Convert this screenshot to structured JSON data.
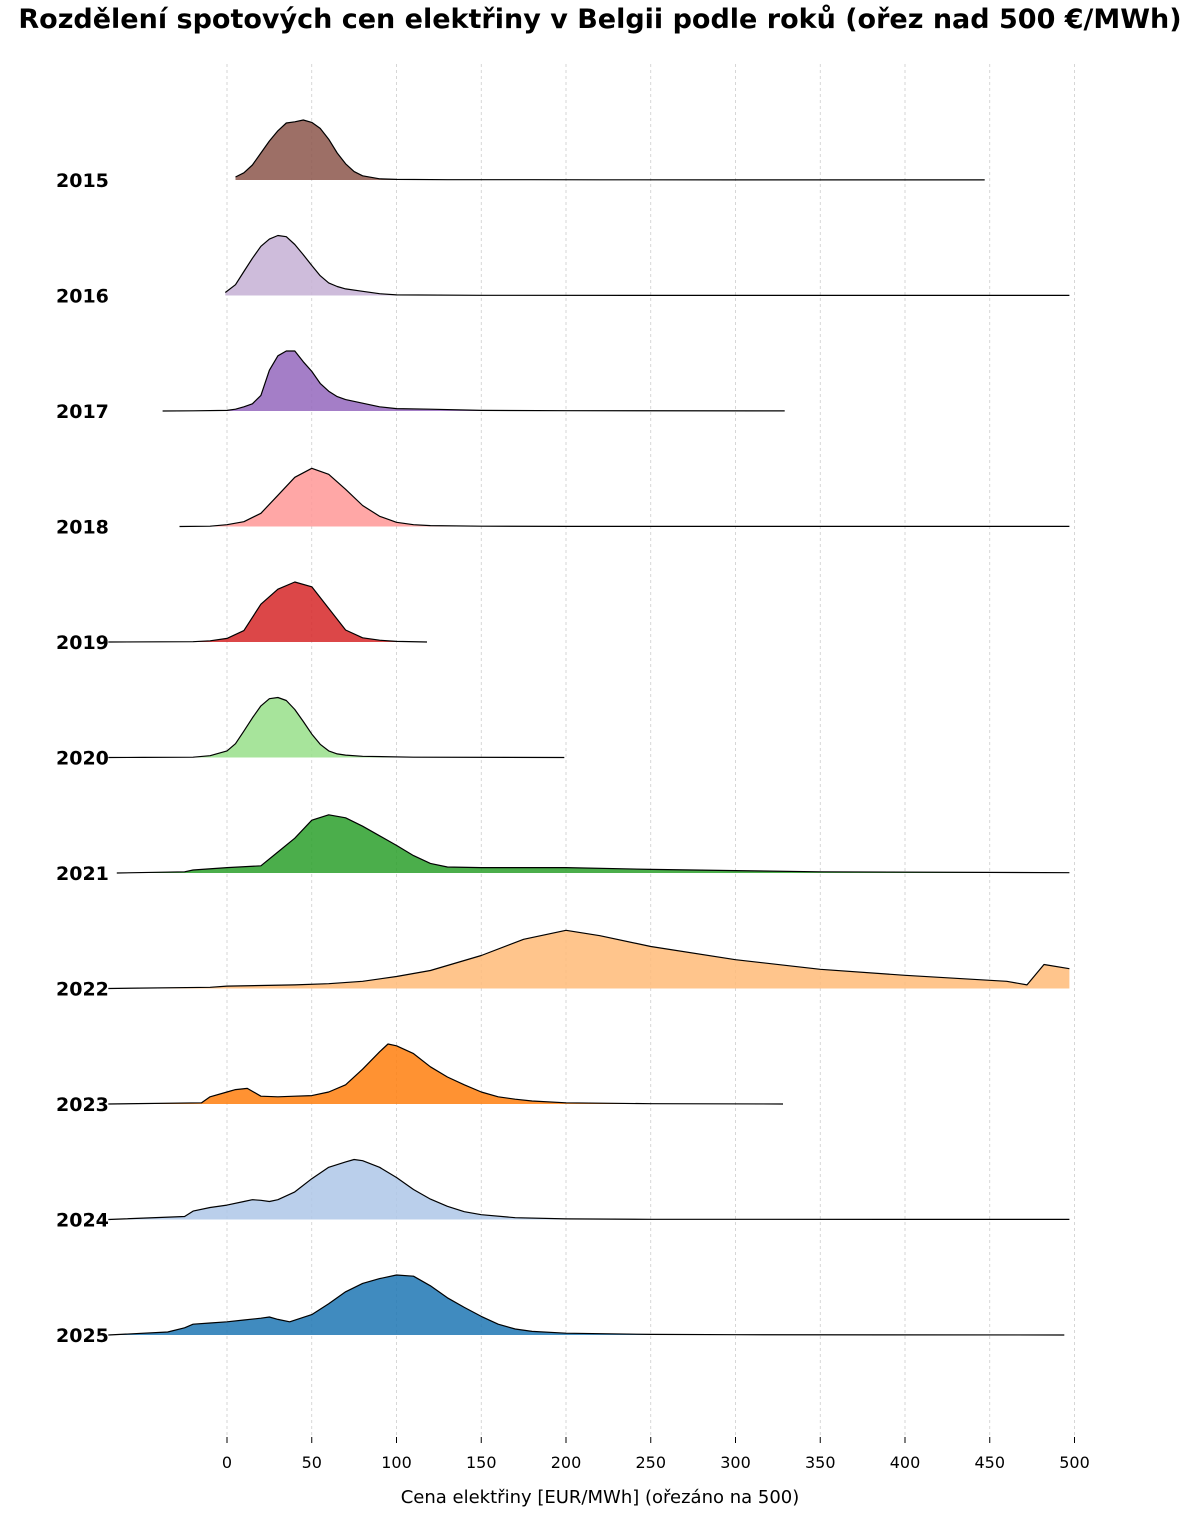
{
  "chart_data": {
    "type": "ridgeline",
    "title": "Rozdělení spotových cen elektřiny v Belgii podle roků (ořez nad 500 €/MWh)",
    "xlabel": "Cena elektřiny [EUR/MWh] (ořezáno na 500)",
    "xlim": [
      -70,
      500
    ],
    "xticks": [
      0,
      50,
      100,
      150,
      200,
      250,
      300,
      350,
      400,
      450,
      500
    ],
    "grid": "vertical dashed",
    "series": [
      {
        "name": "2015",
        "color": "#8c564b",
        "x": [
          5,
          10,
          15,
          20,
          25,
          30,
          35,
          40,
          45,
          50,
          55,
          60,
          65,
          70,
          75,
          80,
          90,
          100,
          130,
          180,
          220,
          300,
          447
        ],
        "y": [
          0.05,
          0.12,
          0.25,
          0.45,
          0.65,
          0.82,
          0.95,
          0.97,
          1.0,
          0.96,
          0.86,
          0.68,
          0.45,
          0.27,
          0.14,
          0.07,
          0.02,
          0.01,
          0.005,
          0.005,
          0.003,
          0.002,
          0.001
        ]
      },
      {
        "name": "2016",
        "color": "#c5b0d5",
        "x": [
          -1,
          5,
          10,
          15,
          20,
          25,
          30,
          35,
          40,
          45,
          50,
          55,
          60,
          65,
          70,
          80,
          90,
          100,
          150,
          250,
          497
        ],
        "y": [
          0.05,
          0.18,
          0.4,
          0.62,
          0.82,
          0.94,
          1.0,
          0.98,
          0.85,
          0.68,
          0.5,
          0.33,
          0.21,
          0.15,
          0.11,
          0.07,
          0.03,
          0.01,
          0.004,
          0.002,
          0.001
        ]
      },
      {
        "name": "2017",
        "color": "#9467bd",
        "x": [
          -38,
          -20,
          0,
          5,
          10,
          15,
          20,
          25,
          30,
          35,
          40,
          45,
          50,
          55,
          60,
          65,
          70,
          80,
          90,
          100,
          120,
          150,
          200,
          329
        ],
        "y": [
          0.0,
          0.003,
          0.01,
          0.03,
          0.07,
          0.12,
          0.26,
          0.68,
          0.92,
          1.0,
          1.0,
          0.82,
          0.66,
          0.46,
          0.33,
          0.24,
          0.19,
          0.13,
          0.07,
          0.04,
          0.03,
          0.01,
          0.005,
          0.002
        ]
      },
      {
        "name": "2018",
        "color": "#ff9896",
        "x": [
          -28,
          -10,
          0,
          10,
          20,
          30,
          40,
          50,
          60,
          70,
          80,
          90,
          100,
          110,
          120,
          150,
          200,
          497
        ],
        "y": [
          0.0,
          0.005,
          0.03,
          0.08,
          0.22,
          0.52,
          0.82,
          0.97,
          0.87,
          0.62,
          0.35,
          0.17,
          0.07,
          0.03,
          0.015,
          0.005,
          0.002,
          0.001
        ]
      },
      {
        "name": "2019",
        "color": "#d62728",
        "x": [
          -70,
          -20,
          -10,
          0,
          10,
          20,
          30,
          40,
          50,
          60,
          70,
          80,
          90,
          100,
          118
        ],
        "y": [
          0.0,
          0.005,
          0.02,
          0.06,
          0.19,
          0.63,
          0.88,
          1.0,
          0.92,
          0.56,
          0.2,
          0.07,
          0.03,
          0.01,
          0.0
        ]
      },
      {
        "name": "2020",
        "color": "#98df8a",
        "x": [
          -70,
          -50,
          -20,
          -10,
          0,
          5,
          10,
          15,
          20,
          25,
          30,
          35,
          40,
          45,
          50,
          55,
          60,
          65,
          70,
          80,
          110,
          199
        ],
        "y": [
          0.0,
          0.002,
          0.005,
          0.03,
          0.11,
          0.23,
          0.44,
          0.66,
          0.86,
          0.98,
          1.0,
          0.95,
          0.8,
          0.6,
          0.39,
          0.22,
          0.11,
          0.06,
          0.04,
          0.02,
          0.005,
          0.0
        ]
      },
      {
        "name": "2021",
        "color": "#2ca02c",
        "x": [
          -65,
          -25,
          -20,
          0,
          20,
          30,
          40,
          50,
          60,
          70,
          80,
          90,
          100,
          110,
          120,
          130,
          150,
          200,
          250,
          300,
          350,
          497
        ],
        "y": [
          0.0,
          0.02,
          0.05,
          0.09,
          0.12,
          0.35,
          0.58,
          0.88,
          0.97,
          0.92,
          0.78,
          0.62,
          0.46,
          0.29,
          0.16,
          0.1,
          0.09,
          0.09,
          0.06,
          0.04,
          0.02,
          0.005
        ]
      },
      {
        "name": "2022",
        "color": "#ffbb78",
        "x": [
          -70,
          -10,
          0,
          20,
          40,
          60,
          80,
          100,
          120,
          150,
          175,
          200,
          220,
          250,
          300,
          350,
          400,
          460,
          472,
          482,
          497
        ],
        "y": [
          0.0,
          0.02,
          0.04,
          0.05,
          0.06,
          0.08,
          0.12,
          0.2,
          0.3,
          0.55,
          0.82,
          0.97,
          0.88,
          0.7,
          0.48,
          0.32,
          0.22,
          0.12,
          0.06,
          0.4,
          0.33
        ]
      },
      {
        "name": "2023",
        "color": "#ff7f0e",
        "x": [
          -70,
          -15,
          -10,
          0,
          5,
          12,
          20,
          30,
          40,
          50,
          60,
          70,
          80,
          90,
          95,
          100,
          110,
          120,
          130,
          140,
          150,
          160,
          170,
          180,
          200,
          250,
          328
        ],
        "y": [
          0.0,
          0.02,
          0.12,
          0.2,
          0.24,
          0.26,
          0.13,
          0.12,
          0.13,
          0.14,
          0.2,
          0.32,
          0.58,
          0.87,
          1.0,
          0.97,
          0.84,
          0.62,
          0.45,
          0.32,
          0.2,
          0.12,
          0.08,
          0.05,
          0.02,
          0.005,
          0.0
        ]
      },
      {
        "name": "2024",
        "color": "#aec7e8",
        "x": [
          -70,
          -25,
          -20,
          -10,
          0,
          10,
          15,
          20,
          25,
          30,
          40,
          50,
          60,
          70,
          75,
          80,
          90,
          100,
          110,
          120,
          130,
          140,
          150,
          170,
          200,
          250,
          497
        ],
        "y": [
          0.0,
          0.05,
          0.14,
          0.2,
          0.24,
          0.3,
          0.33,
          0.32,
          0.3,
          0.33,
          0.46,
          0.68,
          0.87,
          0.96,
          1.0,
          0.98,
          0.87,
          0.7,
          0.5,
          0.34,
          0.22,
          0.13,
          0.08,
          0.03,
          0.01,
          0.004,
          0.001
        ]
      },
      {
        "name": "2025",
        "color": "#1f77b4",
        "x": [
          -70,
          -35,
          -25,
          -20,
          -10,
          0,
          10,
          20,
          25,
          30,
          37,
          50,
          60,
          70,
          80,
          90,
          100,
          110,
          120,
          130,
          140,
          150,
          160,
          170,
          180,
          200,
          250,
          300,
          494
        ],
        "y": [
          0.0,
          0.05,
          0.12,
          0.18,
          0.2,
          0.22,
          0.25,
          0.28,
          0.3,
          0.26,
          0.22,
          0.34,
          0.52,
          0.72,
          0.86,
          0.94,
          1.0,
          0.98,
          0.82,
          0.62,
          0.46,
          0.31,
          0.18,
          0.1,
          0.06,
          0.03,
          0.01,
          0.005,
          0.0
        ]
      }
    ]
  }
}
